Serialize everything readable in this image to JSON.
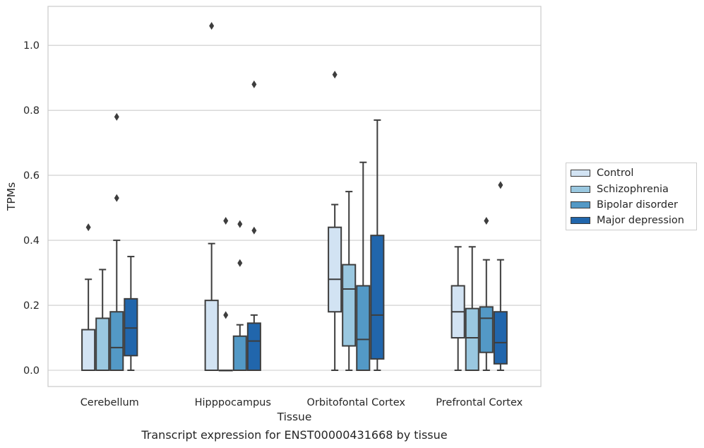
{
  "chart_data": {
    "type": "box",
    "xlabel": "Tissue",
    "ylabel": "TPMs",
    "ylim": [
      -0.05,
      1.12
    ],
    "yticks": [
      0.0,
      0.2,
      0.4,
      0.6,
      0.8,
      1.0
    ],
    "ytick_labels": [
      "0.0",
      "0.2",
      "0.4",
      "0.6",
      "0.8",
      "1.0"
    ],
    "grid": "horizontal",
    "legend_position": "outside-right",
    "categories": [
      "Cerebellum",
      "Hipppocampus",
      "Orbitofontal Cortex",
      "Prefrontal Cortex"
    ],
    "series": [
      {
        "name": "Control",
        "color": "#d2e3f3",
        "boxes": [
          {
            "whislo": 0.0,
            "q1": 0.0,
            "med": 0.0,
            "q3": 0.125,
            "whishi": 0.28,
            "fliers": [
              0.44
            ]
          },
          {
            "whislo": 0.0,
            "q1": 0.0,
            "med": 0.0,
            "q3": 0.215,
            "whishi": 0.39,
            "fliers": [
              1.06
            ]
          },
          {
            "whislo": 0.0,
            "q1": 0.18,
            "med": 0.28,
            "q3": 0.44,
            "whishi": 0.51,
            "fliers": [
              0.91
            ]
          },
          {
            "whislo": 0.0,
            "q1": 0.1,
            "med": 0.18,
            "q3": 0.26,
            "whishi": 0.38,
            "fliers": []
          }
        ]
      },
      {
        "name": "Schizophrenia",
        "color": "#9ac8e0",
        "boxes": [
          {
            "whislo": 0.0,
            "q1": 0.0,
            "med": 0.0,
            "q3": 0.16,
            "whishi": 0.31,
            "fliers": []
          },
          {
            "whislo": 0.0,
            "q1": 0.0,
            "med": 0.0,
            "q3": 0.0,
            "whishi": 0.0,
            "fliers": [
              0.17,
              0.46
            ]
          },
          {
            "whislo": 0.0,
            "q1": 0.075,
            "med": 0.25,
            "q3": 0.325,
            "whishi": 0.55,
            "fliers": []
          },
          {
            "whislo": 0.0,
            "q1": 0.0,
            "med": 0.1,
            "q3": 0.19,
            "whishi": 0.38,
            "fliers": []
          }
        ]
      },
      {
        "name": "Bipolar disorder",
        "color": "#5399c6",
        "boxes": [
          {
            "whislo": 0.0,
            "q1": 0.0,
            "med": 0.07,
            "q3": 0.18,
            "whishi": 0.4,
            "fliers": [
              0.53,
              0.78
            ]
          },
          {
            "whislo": 0.0,
            "q1": 0.0,
            "med": 0.0,
            "q3": 0.105,
            "whishi": 0.14,
            "fliers": [
              0.33,
              0.45
            ]
          },
          {
            "whislo": 0.0,
            "q1": 0.0,
            "med": 0.095,
            "q3": 0.26,
            "whishi": 0.64,
            "fliers": []
          },
          {
            "whislo": 0.0,
            "q1": 0.055,
            "med": 0.16,
            "q3": 0.195,
            "whishi": 0.34,
            "fliers": [
              0.46
            ]
          }
        ]
      },
      {
        "name": "Major depression",
        "color": "#2166ac",
        "boxes": [
          {
            "whislo": 0.0,
            "q1": 0.045,
            "med": 0.13,
            "q3": 0.22,
            "whishi": 0.35,
            "fliers": []
          },
          {
            "whislo": 0.0,
            "q1": 0.0,
            "med": 0.09,
            "q3": 0.145,
            "whishi": 0.17,
            "fliers": [
              0.43,
              0.88
            ]
          },
          {
            "whislo": 0.0,
            "q1": 0.035,
            "med": 0.17,
            "q3": 0.415,
            "whishi": 0.77,
            "fliers": []
          },
          {
            "whislo": 0.0,
            "q1": 0.02,
            "med": 0.085,
            "q3": 0.18,
            "whishi": 0.34,
            "fliers": [
              0.57
            ]
          }
        ]
      }
    ]
  },
  "caption": "Transcript expression for ENST00000431668 by tissue"
}
